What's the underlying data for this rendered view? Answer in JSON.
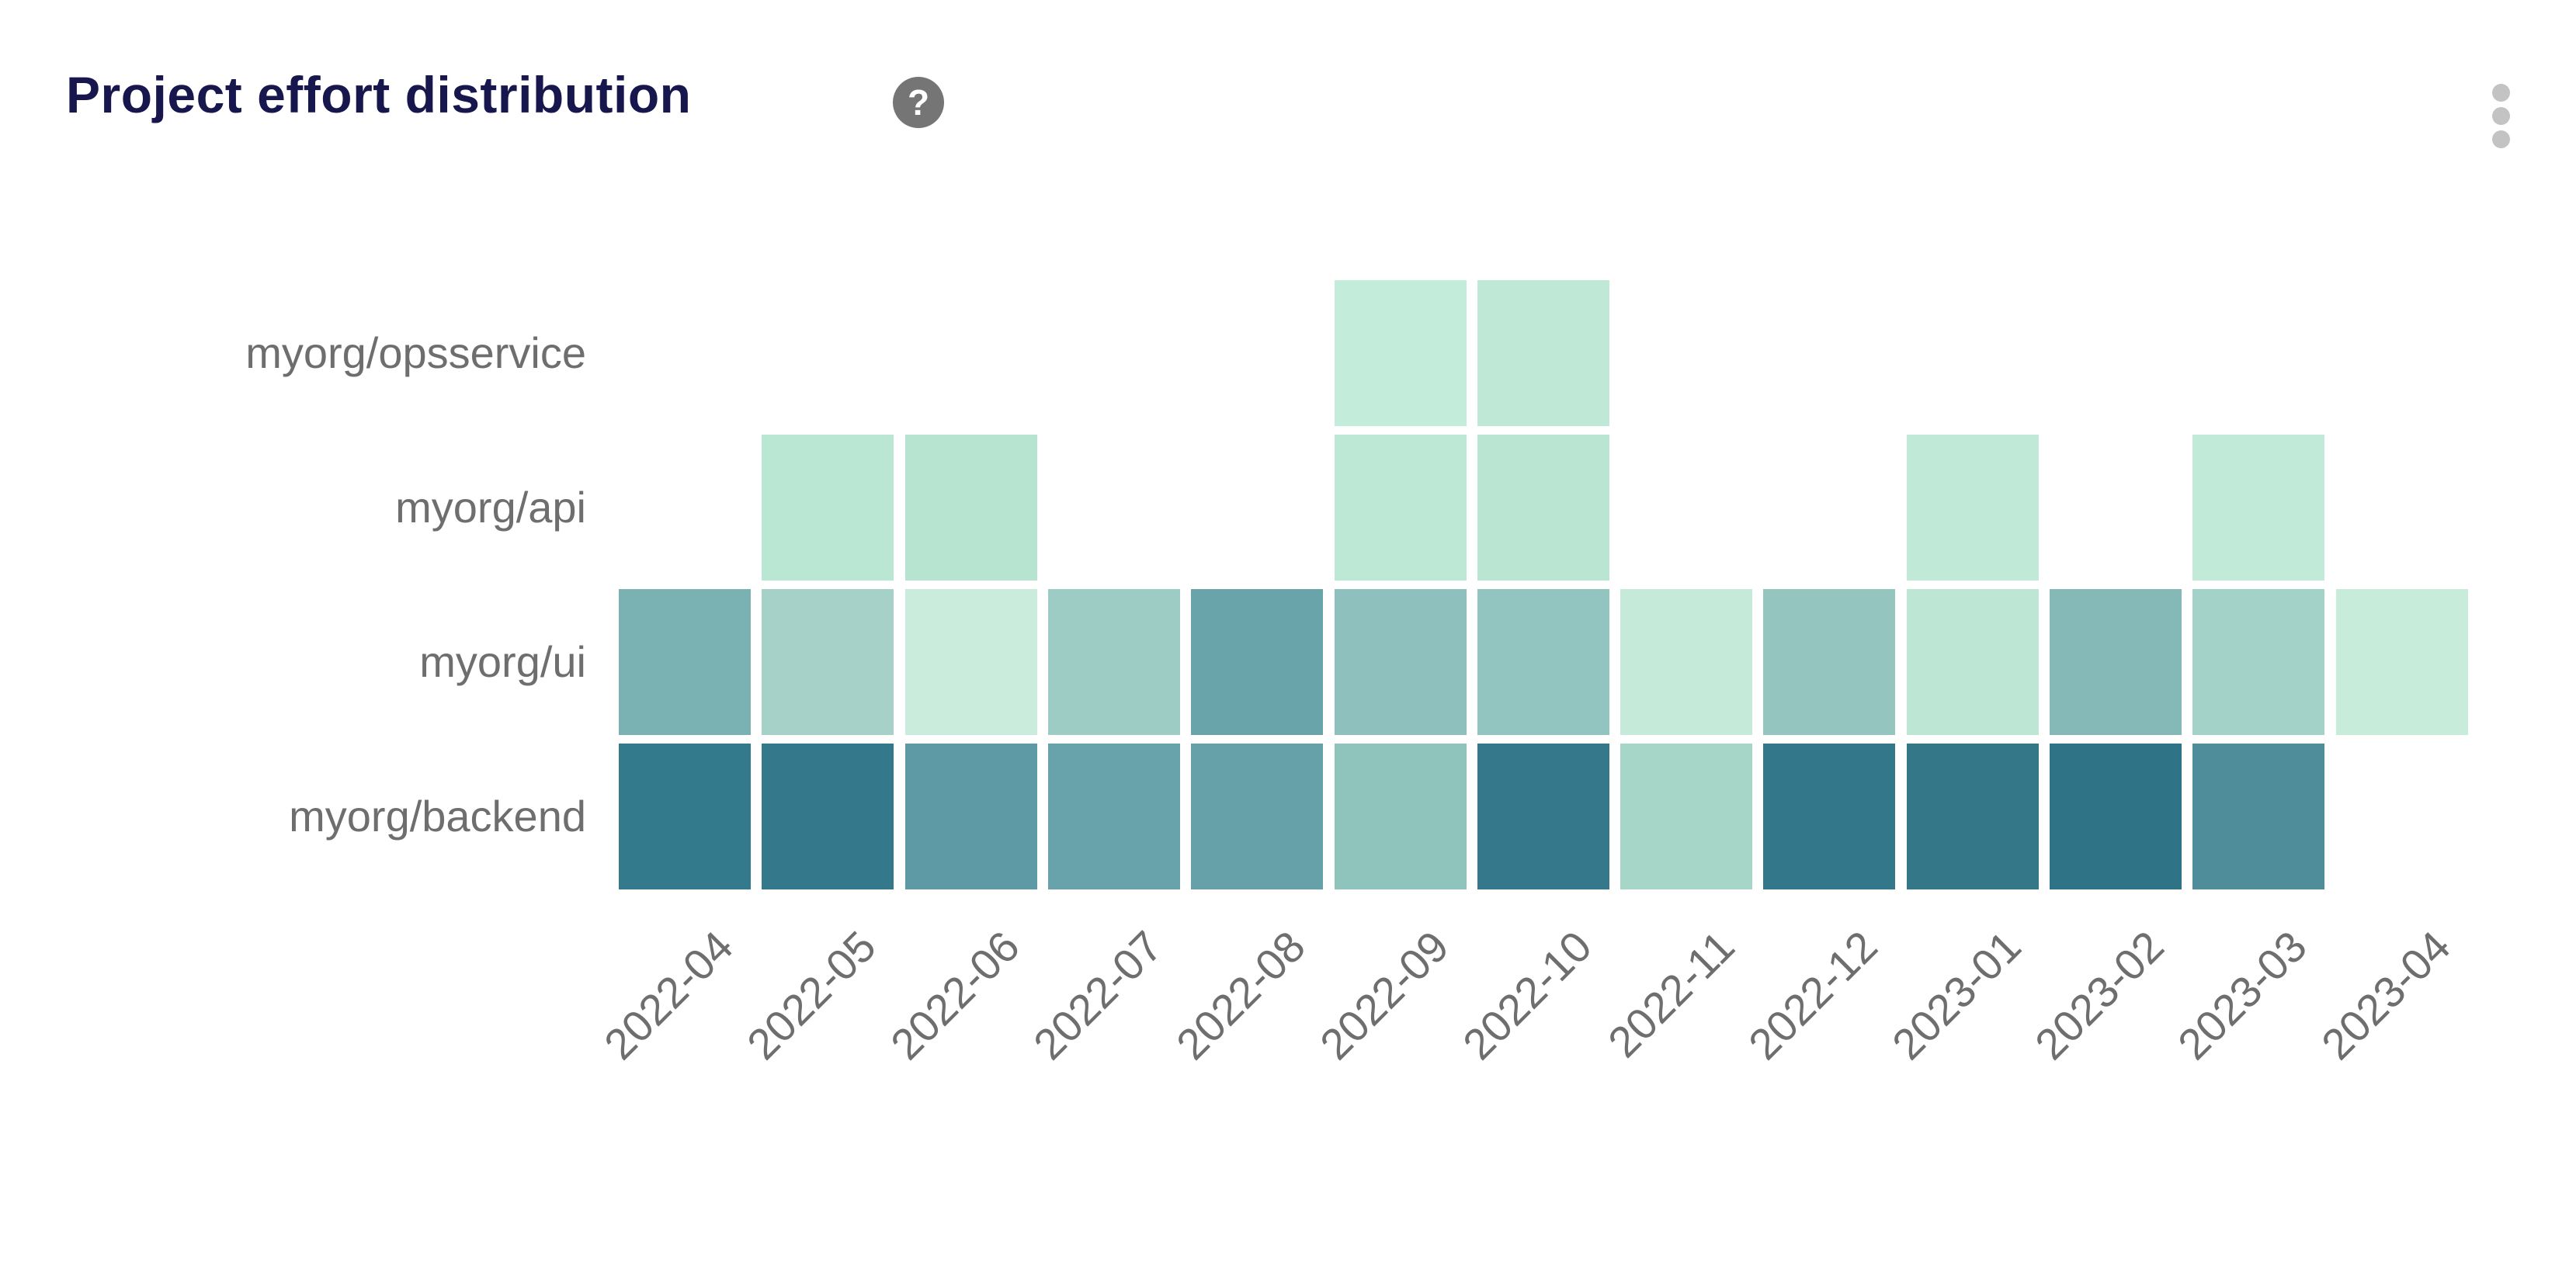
{
  "header": {
    "title": "Project effort distribution",
    "help_glyph": "?",
    "help_icon": "question-mark-circle-icon",
    "menu_icon": "kebab-vertical-dots-icon"
  },
  "colors": {
    "background": "#ffffff",
    "title_text": "#17174e",
    "axis_label_text": "#6e6e6e",
    "help_icon_bg": "#757575",
    "help_icon_glyph": "#ffffff",
    "kebab_dot": "#c3c3c3"
  },
  "chart_data": {
    "type": "heatmap",
    "title": "Project effort distribution",
    "x_categories": [
      "2022-04",
      "2022-05",
      "2022-06",
      "2022-07",
      "2022-08",
      "2022-09",
      "2022-10",
      "2022-11",
      "2022-12",
      "2023-01",
      "2023-02",
      "2023-03",
      "2023-04"
    ],
    "y_categories_top_to_bottom": [
      "myorg/opsservice",
      "myorg/api",
      "myorg/ui",
      "myorg/backend"
    ],
    "legend": "none",
    "grid_lines": "off",
    "color_scale": {
      "low_color": "#c9ecdc",
      "high_color": "#2f7486",
      "meaning": "relative effort (darker = more effort)"
    },
    "cells": [
      {
        "project": "myorg/opsservice",
        "month": "2022-09",
        "color": "#c3edda",
        "intensity": 0.12
      },
      {
        "project": "myorg/opsservice",
        "month": "2022-10",
        "color": "#bfe9d6",
        "intensity": 0.13
      },
      {
        "project": "myorg/api",
        "month": "2022-05",
        "color": "#b9e7d3",
        "intensity": 0.18
      },
      {
        "project": "myorg/api",
        "month": "2022-06",
        "color": "#b6e4d1",
        "intensity": 0.19
      },
      {
        "project": "myorg/api",
        "month": "2022-09",
        "color": "#bee8d6",
        "intensity": 0.15
      },
      {
        "project": "myorg/api",
        "month": "2022-10",
        "color": "#bae5d3",
        "intensity": 0.17
      },
      {
        "project": "myorg/api",
        "month": "2023-01",
        "color": "#c0e9d7",
        "intensity": 0.14
      },
      {
        "project": "myorg/api",
        "month": "2023-03",
        "color": "#c2ead8",
        "intensity": 0.13
      },
      {
        "project": "myorg/ui",
        "month": "2022-04",
        "color": "#7ab1b3",
        "intensity": 0.55
      },
      {
        "project": "myorg/ui",
        "month": "2022-05",
        "color": "#a6d1c9",
        "intensity": 0.32
      },
      {
        "project": "myorg/ui",
        "month": "2022-06",
        "color": "#c9ecdc",
        "intensity": 0.1
      },
      {
        "project": "myorg/ui",
        "month": "2022-07",
        "color": "#9dccc5",
        "intensity": 0.38
      },
      {
        "project": "myorg/ui",
        "month": "2022-08",
        "color": "#69a4aa",
        "intensity": 0.64
      },
      {
        "project": "myorg/ui",
        "month": "2022-09",
        "color": "#8ec1bd",
        "intensity": 0.45
      },
      {
        "project": "myorg/ui",
        "month": "2022-10",
        "color": "#93c5c0",
        "intensity": 0.42
      },
      {
        "project": "myorg/ui",
        "month": "2022-11",
        "color": "#c5ead9",
        "intensity": 0.11
      },
      {
        "project": "myorg/ui",
        "month": "2022-12",
        "color": "#94c5bf",
        "intensity": 0.42
      },
      {
        "project": "myorg/ui",
        "month": "2023-01",
        "color": "#bde6d5",
        "intensity": 0.16
      },
      {
        "project": "myorg/ui",
        "month": "2023-02",
        "color": "#84b9b8",
        "intensity": 0.5
      },
      {
        "project": "myorg/ui",
        "month": "2023-03",
        "color": "#a3d3c8",
        "intensity": 0.33
      },
      {
        "project": "myorg/ui",
        "month": "2023-04",
        "color": "#c7ecda",
        "intensity": 0.1
      },
      {
        "project": "myorg/backend",
        "month": "2022-04",
        "color": "#337a8c",
        "intensity": 0.95
      },
      {
        "project": "myorg/backend",
        "month": "2022-05",
        "color": "#34798b",
        "intensity": 0.95
      },
      {
        "project": "myorg/backend",
        "month": "2022-06",
        "color": "#5e9aa5",
        "intensity": 0.7
      },
      {
        "project": "myorg/backend",
        "month": "2022-07",
        "color": "#68a3ab",
        "intensity": 0.65
      },
      {
        "project": "myorg/backend",
        "month": "2022-08",
        "color": "#66a1a9",
        "intensity": 0.66
      },
      {
        "project": "myorg/backend",
        "month": "2022-09",
        "color": "#8fc4bd",
        "intensity": 0.44
      },
      {
        "project": "myorg/backend",
        "month": "2022-10",
        "color": "#35788c",
        "intensity": 0.94
      },
      {
        "project": "myorg/backend",
        "month": "2022-11",
        "color": "#a5d6c8",
        "intensity": 0.31
      },
      {
        "project": "myorg/backend",
        "month": "2022-12",
        "color": "#33788a",
        "intensity": 0.95
      },
      {
        "project": "myorg/backend",
        "month": "2023-01",
        "color": "#337789",
        "intensity": 0.95
      },
      {
        "project": "myorg/backend",
        "month": "2023-02",
        "color": "#2f7486",
        "intensity": 1.0
      },
      {
        "project": "myorg/backend",
        "month": "2023-03",
        "color": "#4f8d9b",
        "intensity": 0.78
      }
    ]
  }
}
